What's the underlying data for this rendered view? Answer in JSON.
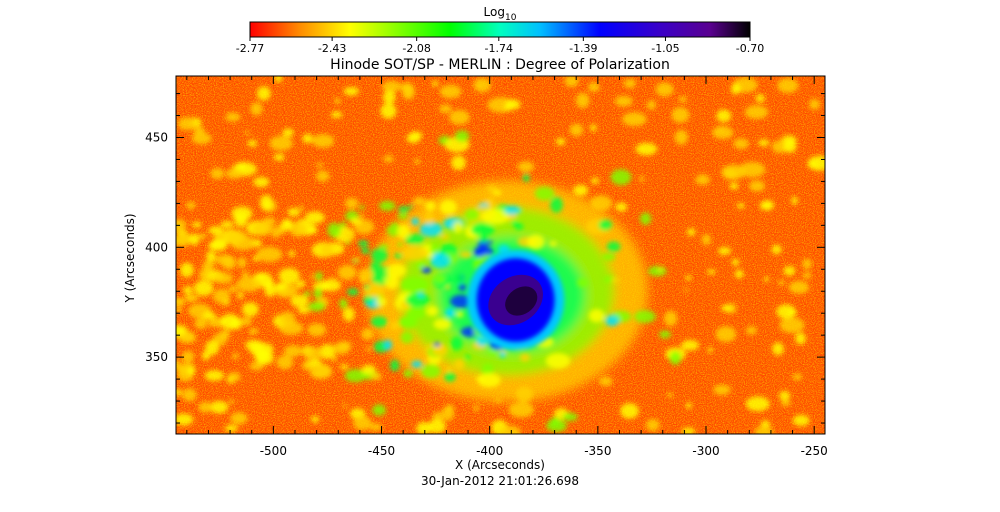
{
  "chart_data": {
    "type": "heatmap",
    "title": "Hinode SOT/SP - MERLIN : Degree of Polarization",
    "xlabel": "X (Arcseconds)",
    "ylabel": "Y (Arcseconds)",
    "timestamp": "30-Jan-2012 21:01:26.698",
    "xlim": [
      -545,
      -245
    ],
    "ylim": [
      315,
      478
    ],
    "x_ticks": [
      -500,
      -450,
      -400,
      -350,
      -300,
      -250
    ],
    "x_tick_labels": [
      "-500",
      "-450",
      "-400",
      "-350",
      "-300",
      "-250"
    ],
    "y_ticks": [
      350,
      400,
      450
    ],
    "y_tick_labels": [
      "350",
      "400",
      "450"
    ],
    "colorbar": {
      "label_main": "Log",
      "label_sub": "10",
      "range": [
        -2.77,
        -0.7
      ],
      "ticks": [
        -2.77,
        -2.43,
        -2.08,
        -1.74,
        -1.39,
        -1.05,
        -0.7
      ],
      "tick_labels": [
        "-2.77",
        "-2.43",
        "-2.08",
        "-1.74",
        "-1.39",
        "-1.05",
        "-0.70"
      ],
      "colormap": [
        "#ff0000",
        "#ff8c00",
        "#ffff00",
        "#7fff00",
        "#00ff00",
        "#00ffbf",
        "#00bfff",
        "#0000ff",
        "#3a00c8",
        "#5a0090",
        "#000000"
      ]
    },
    "features": [
      {
        "kind": "sunspot_umbra",
        "x": -388,
        "y": 376,
        "rx": 10,
        "ry": 10,
        "value": -0.72
      },
      {
        "kind": "sunspot_penumbra",
        "x": -388,
        "y": 376,
        "rx": 18,
        "ry": 19,
        "value": -1.05
      },
      {
        "kind": "moat",
        "x": -392,
        "y": 380,
        "rx": 62,
        "ry": 48,
        "value": -2.08
      }
    ]
  }
}
